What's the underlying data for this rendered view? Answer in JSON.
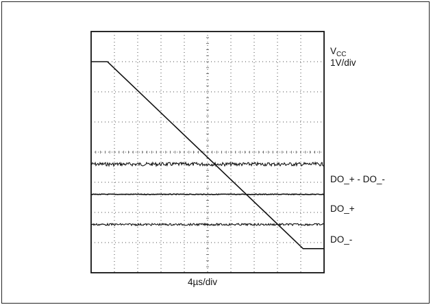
{
  "chart_data": {
    "type": "line",
    "x_label": "4µs/div",
    "x_divisions": 10,
    "y_divisions": 8,
    "grid": true,
    "traces": [
      {
        "name_main": "V",
        "name_sub": "CC",
        "scale": "1V/div",
        "x": [
          0,
          0.7,
          9.1,
          10
        ],
        "y": [
          7.0,
          7.0,
          0.8,
          0.8
        ]
      },
      {
        "name": "DO_+ - DO_-",
        "level": 3.6,
        "noise": "high"
      },
      {
        "name": "DO_+",
        "level": 2.6,
        "noise": "low"
      },
      {
        "name": "DO_-",
        "level": 1.6,
        "noise": "medium"
      }
    ]
  }
}
